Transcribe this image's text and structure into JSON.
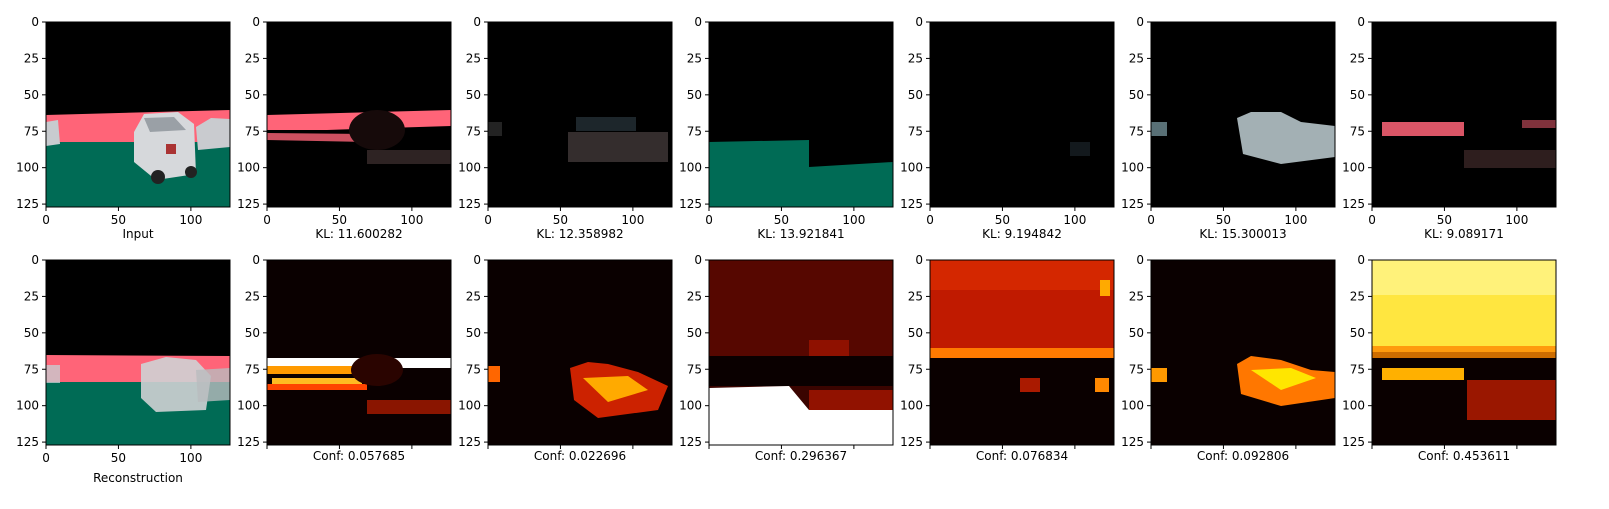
{
  "figure": {
    "top_row": {
      "panels": [
        {
          "caption": "Input",
          "kind": "segmentation-input"
        },
        {
          "caption": "KL: 11.600282",
          "kind": "latent-decoding"
        },
        {
          "caption": "KL: 12.358982",
          "kind": "latent-decoding"
        },
        {
          "caption": "KL: 13.921841",
          "kind": "latent-decoding"
        },
        {
          "caption": "KL: 9.194842",
          "kind": "latent-decoding"
        },
        {
          "caption": "KL: 15.300013",
          "kind": "latent-decoding"
        },
        {
          "caption": "KL: 9.089171",
          "kind": "latent-decoding"
        }
      ]
    },
    "bottom_row": {
      "panels": [
        {
          "caption": "Reconstruction",
          "kind": "segmentation-reconstruction"
        },
        {
          "caption": "Conf: 0.057685",
          "kind": "confidence-heatmap"
        },
        {
          "caption": "Conf: 0.022696",
          "kind": "confidence-heatmap"
        },
        {
          "caption": "Conf: 0.296367",
          "kind": "confidence-heatmap"
        },
        {
          "caption": "Conf: 0.076834",
          "kind": "confidence-heatmap"
        },
        {
          "caption": "Conf: 0.092806",
          "kind": "confidence-heatmap"
        },
        {
          "caption": "Conf: 0.453611",
          "kind": "confidence-heatmap"
        }
      ]
    },
    "axes": {
      "x_ticks": [
        "0",
        "50",
        "100"
      ],
      "y_ticks": [
        "0",
        "25",
        "50",
        "75",
        "100",
        "125"
      ],
      "xlim": [
        0,
        127
      ],
      "ylim": [
        127,
        0
      ]
    },
    "colors": {
      "sky": "#000000",
      "road": "#ff6478",
      "ground": "#006b55",
      "car": "#c8ccd0",
      "heat_low": "#0a0000",
      "heat_mid": "#cc2200",
      "heat_high": "#ffe600",
      "heat_max": "#ffffff"
    }
  }
}
